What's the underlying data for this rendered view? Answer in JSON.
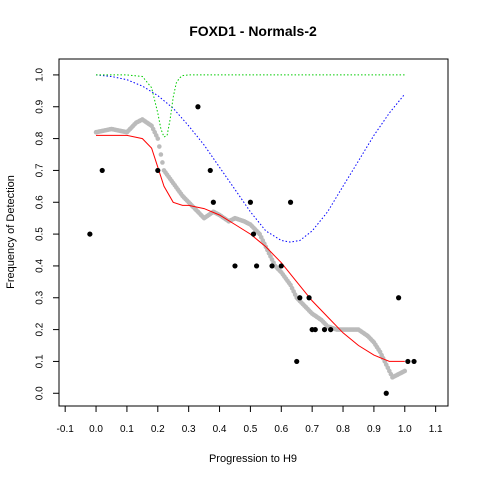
{
  "chart_data": {
    "type": "scatter",
    "title": "FOXD1 - Normals-2",
    "xlabel": "Progression to H9",
    "ylabel": "Frequency of Detection",
    "xlim": [
      -0.12,
      1.14
    ],
    "ylim": [
      -0.04,
      1.05
    ],
    "xticks": [
      -0.1,
      0.0,
      0.1,
      0.2,
      0.3,
      0.4,
      0.5,
      0.6,
      0.7,
      0.8,
      0.9,
      1.0,
      1.1
    ],
    "xtick_labels": [
      "-0.1",
      "0.0",
      "0.1",
      "0.2",
      "0.3",
      "0.4",
      "0.5",
      "0.6",
      "0.7",
      "0.8",
      "0.9",
      "1.0",
      "1.1"
    ],
    "yticks": [
      0.0,
      0.1,
      0.2,
      0.3,
      0.4,
      0.5,
      0.6,
      0.7,
      0.8,
      0.9,
      1.0
    ],
    "ytick_labels": [
      "0.0",
      "0.1",
      "0.2",
      "0.3",
      "0.4",
      "0.5",
      "0.6",
      "0.7",
      "0.8",
      "0.9",
      "1.0"
    ],
    "grid": false,
    "colors": {
      "points": "#000000",
      "smooth": "#bbbbbb",
      "fit": "#ff0000",
      "blue_curve": "#0000ff",
      "green_curve": "#00cc00"
    },
    "series": [
      {
        "style": "black-points",
        "x": [
          -0.02,
          0.02,
          0.2,
          0.33,
          0.37,
          0.38,
          0.45,
          0.5,
          0.51,
          0.52,
          0.57,
          0.6,
          0.63,
          0.65,
          0.66,
          0.69,
          0.7,
          0.71,
          0.74,
          0.76,
          0.94,
          0.98,
          1.01,
          1.03
        ],
        "y": [
          0.5,
          0.7,
          0.7,
          0.9,
          0.7,
          0.6,
          0.4,
          0.6,
          0.5,
          0.4,
          0.4,
          0.4,
          0.6,
          0.1,
          0.3,
          0.3,
          0.2,
          0.2,
          0.2,
          0.2,
          0.0,
          0.3,
          0.1,
          0.1
        ]
      },
      {
        "style": "gray-smooth",
        "x": [
          0.0,
          0.05,
          0.1,
          0.13,
          0.15,
          0.18,
          0.2,
          0.22,
          0.25,
          0.28,
          0.3,
          0.33,
          0.35,
          0.38,
          0.4,
          0.43,
          0.45,
          0.48,
          0.5,
          0.53,
          0.55,
          0.58,
          0.6,
          0.63,
          0.65,
          0.68,
          0.7,
          0.73,
          0.75,
          0.78,
          0.8,
          0.83,
          0.85,
          0.88,
          0.9,
          0.92,
          0.94,
          0.96,
          0.98,
          1.0
        ],
        "y": [
          0.82,
          0.83,
          0.82,
          0.85,
          0.86,
          0.84,
          0.8,
          0.7,
          0.66,
          0.62,
          0.6,
          0.57,
          0.55,
          0.57,
          0.56,
          0.54,
          0.55,
          0.54,
          0.53,
          0.5,
          0.46,
          0.4,
          0.38,
          0.34,
          0.3,
          0.27,
          0.25,
          0.23,
          0.21,
          0.2,
          0.2,
          0.2,
          0.2,
          0.18,
          0.16,
          0.13,
          0.09,
          0.05,
          0.06,
          0.07
        ]
      },
      {
        "style": "red-fit",
        "x": [
          0.0,
          0.05,
          0.1,
          0.15,
          0.18,
          0.2,
          0.22,
          0.25,
          0.28,
          0.3,
          0.35,
          0.4,
          0.45,
          0.5,
          0.55,
          0.6,
          0.65,
          0.7,
          0.75,
          0.8,
          0.85,
          0.9,
          0.95,
          1.0
        ],
        "y": [
          0.81,
          0.81,
          0.81,
          0.8,
          0.77,
          0.71,
          0.65,
          0.6,
          0.59,
          0.59,
          0.58,
          0.56,
          0.53,
          0.5,
          0.46,
          0.41,
          0.35,
          0.29,
          0.24,
          0.19,
          0.15,
          0.12,
          0.1,
          0.1
        ]
      },
      {
        "style": "blue-dotted",
        "x": [
          0.0,
          0.05,
          0.1,
          0.15,
          0.2,
          0.25,
          0.3,
          0.35,
          0.4,
          0.45,
          0.5,
          0.55,
          0.6,
          0.63,
          0.66,
          0.7,
          0.75,
          0.8,
          0.85,
          0.9,
          0.95,
          1.0
        ],
        "y": [
          1.0,
          0.995,
          0.985,
          0.965,
          0.935,
          0.895,
          0.84,
          0.78,
          0.71,
          0.64,
          0.57,
          0.51,
          0.48,
          0.475,
          0.48,
          0.51,
          0.57,
          0.65,
          0.73,
          0.81,
          0.88,
          0.94
        ]
      },
      {
        "style": "green-dotted",
        "x": [
          0.0,
          0.1,
          0.15,
          0.18,
          0.2,
          0.21,
          0.22,
          0.23,
          0.24,
          0.25,
          0.26,
          0.27,
          0.28,
          0.3,
          0.4,
          0.6,
          0.8,
          1.0
        ],
        "y": [
          1.0,
          1.0,
          0.995,
          0.96,
          0.88,
          0.83,
          0.805,
          0.81,
          0.86,
          0.93,
          0.975,
          0.99,
          0.998,
          1.0,
          1.0,
          1.0,
          1.0,
          1.0
        ]
      }
    ]
  }
}
